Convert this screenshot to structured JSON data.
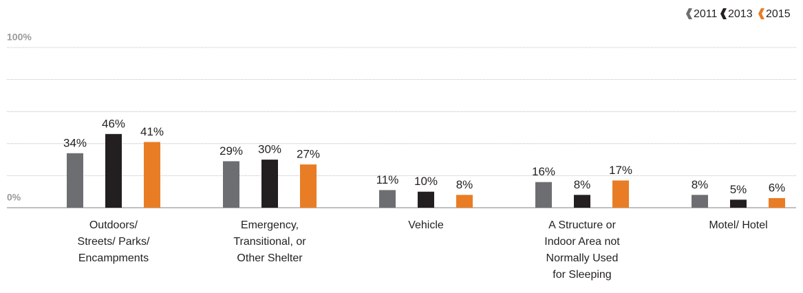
{
  "chart_data": {
    "type": "bar",
    "categories": [
      "Outdoors/\nStreets/ Parks/\nEncampments",
      "Emergency,\nTransitional, or\nOther Shelter",
      "Vehicle",
      "A Structure or\nIndoor Area not\nNormally Used\nfor Sleeping",
      "Motel/ Hotel"
    ],
    "series": [
      {
        "name": "2011",
        "color": "#6d6e71",
        "values": [
          34,
          29,
          11,
          16,
          8
        ],
        "value_labels": [
          "34%",
          "29%",
          "11%",
          "16%",
          "8%"
        ]
      },
      {
        "name": "2013",
        "color": "#231f20",
        "values": [
          46,
          30,
          10,
          8,
          5
        ],
        "value_labels": [
          "46%",
          "30%",
          "10%",
          "8%",
          "5%"
        ]
      },
      {
        "name": "2015",
        "color": "#e87d25",
        "values": [
          41,
          27,
          8,
          17,
          6
        ],
        "value_labels": [
          "41%",
          "27%",
          "8%",
          "17%",
          "6%"
        ]
      }
    ],
    "ylim": [
      0,
      100
    ],
    "yticks": [
      {
        "value": 0,
        "label": "0%"
      },
      {
        "value": 20,
        "label": null
      },
      {
        "value": 40,
        "label": null
      },
      {
        "value": 60,
        "label": null
      },
      {
        "value": 80,
        "label": null
      },
      {
        "value": 100,
        "label": "100%"
      }
    ],
    "grid": true,
    "legend": "top-right"
  }
}
